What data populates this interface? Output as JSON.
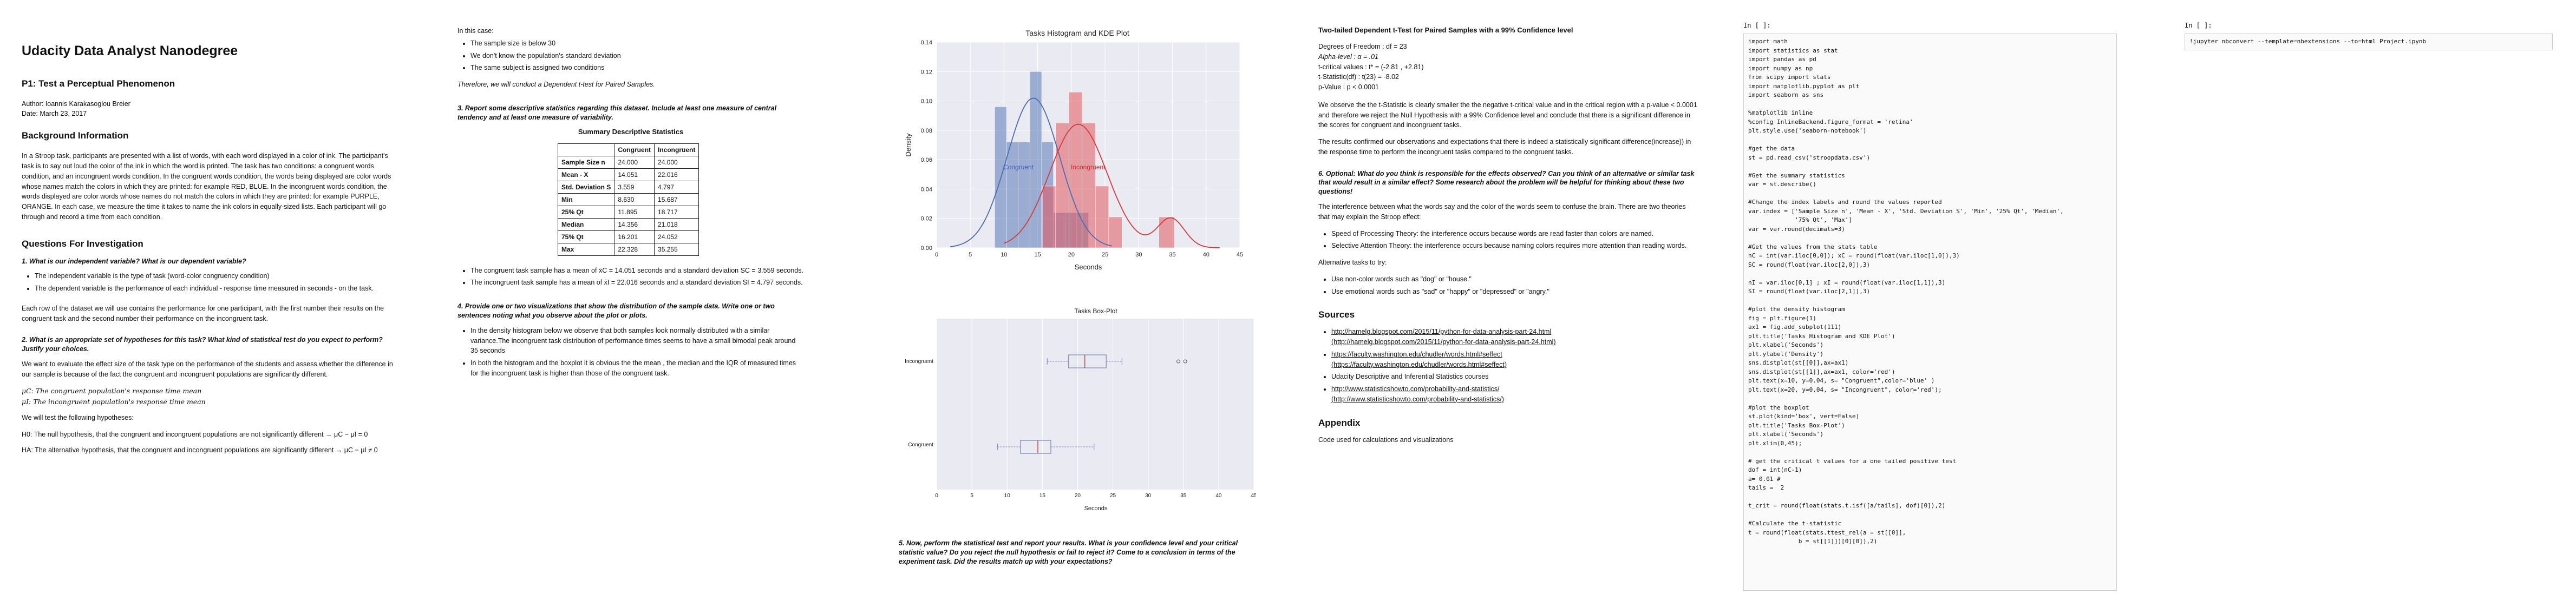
{
  "col1": {
    "title": "Udacity Data Analyst Nanodegree",
    "subtitle": "P1: Test a Perceptual Phenomenon",
    "author": "Author: Ioannis Karakasoglou Breier",
    "date": "Date: March 23, 2017",
    "background_heading": "Background Information",
    "background_text": "In a Stroop task, participants are presented with a list of words, with each word displayed in a color of ink. The participant's task is to say out loud the color of the ink in which the word is printed. The task has two conditions: a congruent words condition, and an incongruent words condition. In the congruent words condition, the words being displayed are color words whose names match the colors in which they are printed: for example RED, BLUE. In the incongruent words condition, the words displayed are color words whose names do not match the colors in which they are printed: for example PURPLE, ORANGE. In each case, we measure the time it takes to name the ink colors in equally-sized lists. Each participant will go through and record a time from each condition.",
    "questions_heading": "Questions For Investigation",
    "q1": "1. What is our independent variable? What is our dependent variable?",
    "q1_bullets": [
      "The independent variable is the type of task (word-color congruency condition)",
      "The dependent variable is the performance of each individual - response time measured in seconds - on the task."
    ],
    "q1_text": "Each row of the dataset we will use contains the performance for one participant, with the first number their results on the congruent task and the second number their performance on the incongruent task.",
    "q2": "2. What is an appropriate set of hypotheses for this task? What kind of statistical test do you expect to perform? Justify your choices.",
    "q2_text": "We want to evaluate the effect size of the task type on the performance of the students and assess whether the difference in our sample is because of the fact the congruent and incongruent populations are significantly different.",
    "mu_c": "μC: The congruent population's response time mean",
    "mu_i": "μI: The incongruent population's response time mean",
    "hyp_intro": "We will test the following hypotheses:",
    "h0": "H0: The null hypothesis, that the congruent and incongruent populations are not significantly different → μC − μI = 0",
    "ha": "HA: The alternative hypothesis, that the congruent and incongruent populations are significantly different → μC − μI ≠ 0"
  },
  "col2": {
    "in_this_case": "In this case:",
    "case_bullets": [
      "The sample size is below 30",
      "We don't know the population's standard deviation",
      "The same subject is assigned two conditions"
    ],
    "conclusion": "Therefore, we will conduct a Dependent t-test for Paired Samples.",
    "q3": "3. Report some descriptive statistics regarding this dataset. Include at least one measure of central tendency and at least one measure of variability.",
    "table_caption": "Summary Descriptive Statistics",
    "table_headers": [
      "",
      "Congruent",
      "Incongruent"
    ],
    "table_rows": [
      [
        "Sample Size n",
        "24.000",
        "24.000"
      ],
      [
        "Mean - X",
        "14.051",
        "22.016"
      ],
      [
        "Std. Deviation S",
        "3.559",
        "4.797"
      ],
      [
        "Min",
        "8.630",
        "15.687"
      ],
      [
        "25% Qt",
        "11.895",
        "18.717"
      ],
      [
        "Median",
        "14.356",
        "21.018"
      ],
      [
        "75% Qt",
        "16.201",
        "24.052"
      ],
      [
        "Max",
        "22.328",
        "35.255"
      ]
    ],
    "stat_bullets": [
      "The congruent task sample has a mean of x̄C = 14.051 seconds and a standard deviation SC = 3.559 seconds.",
      "The incongruent task sample has a mean of x̄I = 22.016 seconds and a standard deviation SI = 4.797 seconds."
    ],
    "q4": "4. Provide one or two visualizations that show the distribution of the sample data. Write one or two sentences noting what you observe about the plot or plots.",
    "viz_bullets": [
      "In the density histogram below we observe that both samples look normally distributed with a similar variance.The incongruent task distribution of performance times seems to have a small bimodal peak around 35 seconds",
      "In both the histogram and the boxplot it is obvious the the mean , the median and the IQR of measured times for the incongruent task is higher than those of the congruent task."
    ]
  },
  "col3": {
    "hist": {
      "title": "Tasks Histogram and KDE Plot",
      "xlabel": "Seconds",
      "ylabel": "Density",
      "xticks": [
        "0",
        "5",
        "10",
        "15",
        "20",
        "25",
        "30",
        "35",
        "40",
        "45"
      ],
      "yticks": [
        "0.00",
        "0.02",
        "0.04",
        "0.06",
        "0.08",
        "0.10",
        "0.12",
        "0.14"
      ],
      "label_congruent": "Congruent",
      "label_incongruent": "Incongruent"
    },
    "box": {
      "title": "Tasks Box-Plot",
      "xlabel": "Seconds",
      "cat_top": "Incongruent",
      "cat_bottom": "Congruent",
      "xticks": [
        "0",
        "5",
        "10",
        "15",
        "20",
        "25",
        "30",
        "35",
        "40",
        "45"
      ]
    },
    "q5": "5. Now, perform the statistical test and report your results. What is your confidence level and your critical statistic value? Do you reject the null hypothesis or fail to reject it? Come to a conclusion in terms of the experiment task. Did the results match up with your expectations?"
  },
  "chart_data": [
    {
      "type": "bar",
      "title": "Tasks Histogram and KDE Plot",
      "xlabel": "Seconds",
      "ylabel": "Density",
      "xlim": [
        0,
        45
      ],
      "ylim": [
        0,
        0.14
      ],
      "series": [
        {
          "name": "Congruent",
          "color": "#5a78b8",
          "bins": [
            [
              8.63,
              10.37,
              0.096
            ],
            [
              10.37,
              12.11,
              0.072
            ],
            [
              12.11,
              13.85,
              0.072
            ],
            [
              13.85,
              15.59,
              0.12
            ],
            [
              15.59,
              17.33,
              0.072
            ],
            [
              17.33,
              19.07,
              0.024
            ],
            [
              19.07,
              20.81,
              0.024
            ],
            [
              20.81,
              22.55,
              0.024
            ]
          ]
        },
        {
          "name": "Incongruent",
          "color": "#e0555c",
          "bins": [
            [
              15.69,
              17.66,
              0.042
            ],
            [
              17.66,
              19.63,
              0.085
            ],
            [
              19.63,
              21.6,
              0.106
            ],
            [
              21.6,
              23.57,
              0.085
            ],
            [
              23.57,
              25.54,
              0.042
            ],
            [
              25.54,
              27.51,
              0.021
            ],
            [
              33.0,
              35.26,
              0.021
            ]
          ]
        }
      ]
    },
    {
      "type": "box",
      "title": "Tasks Box-Plot",
      "xlabel": "Seconds",
      "xlim": [
        0,
        45
      ],
      "series": [
        {
          "name": "Incongruent",
          "min": 15.687,
          "q1": 18.717,
          "median": 21.018,
          "q3": 24.052,
          "max": 26.282,
          "outliers": [
            34.288,
            35.255
          ]
        },
        {
          "name": "Congruent",
          "min": 8.63,
          "q1": 11.895,
          "median": 14.356,
          "q3": 16.201,
          "max": 22.328,
          "outliers": []
        }
      ]
    }
  ],
  "col4": {
    "heading": "Two-tailed Dependent t-Test for Paired Samples with a 99% Confidence level",
    "stats_lines": [
      "Degrees of Freedom : df = 23",
      "Alpha-level : α = .01",
      "t-critical values : t* = (-2.81 , +2.81)",
      "t-Statistic(df) : t(23) = -8.02",
      "p-Value : p < 0.0001"
    ],
    "p1": "We observe the the t-Statistic is clearly smaller the the negative t-critical value and in the critical region with a p-value < 0.0001 and therefore we reject the Null Hypothesis with a 99% Confidence level and conclude that there is a significant difference in the scores for congruent and incongruent tasks.",
    "p2": "The results confirmed our observations and expectations that there is indeed a statistically significant difference(increase)) in the response time to perform the incongruent tasks compared to the congruent tasks.",
    "q6": "6. Optional: What do you think is responsible for the effects observed? Can you think of an alternative or similar task that would result in a similar effect? Some research about the problem will be helpful for thinking about these two questions!",
    "p3": "The interference between what the words say and the color of the words seem to confuse the brain. There are two theories that may explain the Stroop effect:",
    "theories": [
      "Speed of Processing Theory: the interference occurs because words are read faster than colors are named.",
      "Selective Attention Theory: the interference occurs because naming colors requires more attention than reading words."
    ],
    "alt_intro": "Alternative tasks to try:",
    "alt_bullets": [
      "Use non-color words such as \"dog\" or \"house.\"",
      "Use emotional words such as \"sad\" or \"happy\" or \"depressed\" or \"angry.\""
    ],
    "sources_heading": "Sources",
    "sources": [
      [
        "http://hamelg.blogspot.com/2015/11/python-for-data-analysis-part-24.html",
        "(http://hamelg.blogspot.com/2015/11/python-for-data-analysis-part-24.html)"
      ],
      [
        "https://faculty.washington.edu/chudler/words.html#seffect",
        "(https://faculty.washington.edu/chudler/words.html#seffect)"
      ],
      [
        "Udacity Descriptive and Inferential Statistics courses",
        ""
      ],
      [
        "http://www.statisticshowto.com/probability-and-statistics/",
        "(http://www.statisticshowto.com/probability-and-statistics/)"
      ]
    ],
    "appendix_heading": "Appendix",
    "appendix_text": "Code used for calculations and visualizations"
  },
  "col5": {
    "prompt": "In [ ]:",
    "code": "import math\nimport statistics as stat\nimport pandas as pd\nimport numpy as np\nfrom scipy import stats\nimport matplotlib.pyplot as plt\nimport seaborn as sns\n\n%matplotlib inline\n%config InlineBackend.figure_format = 'retina'\nplt.style.use('seaborn-notebook')\n\n#get the data\nst = pd.read_csv('stroopdata.csv')\n\n#Get the summary statistics\nvar = st.describe()\n\n#Change the index labels and round the values reported\nvar.index = ['Sample Size n', 'Mean - X', 'Std. Deviation S', 'Min', '25% Qt', 'Median',\n             '75% Qt', 'Max']\nvar = var.round(decimals=3)\n\n#Get the values from the stats table\nnC = int(var.iloc[0,0]); xC = round(float(var.iloc[1,0]),3)\nSC = round(float(var.iloc[2,0]),3)\n\nnI = var.iloc[0,1] ; xI = round(float(var.iloc[1,1]),3)\nSI = round(float(var.iloc[2,1]),3)\n\n#plot the density histogram\nfig = plt.figure(1)\nax1 = fig.add_subplot(111)\nplt.title('Tasks Histogram and KDE Plot')\nplt.xlabel('Seconds')\nplt.ylabel('Density')\nsns.distplot(st[[0]],ax=ax1)\nsns.distplot(st[[1]],ax=ax1, color='red')\nplt.text(x=10, y=0.04, s= \"Congruent\",color='blue' )\nplt.text(x=20, y=0.04, s= \"Incongruent\", color='red');\n\n#plot the boxplot\nst.plot(kind='box', vert=False)\nplt.title('Tasks Box-Plot')\nplt.xlabel('Seconds')\nplt.xlim(0,45);\n\n# get the critical t values for a one tailed positive test\ndof = int(nC-1)\na= 0.01 #\ntails =  2\n\nt_crit = round(float(stats.t.isf([a/tails], dof)[0]),2)\n\n#Calculate the t-statistic\nt = round(float(stats.ttest_rel(a = st[[0]],\n              b = st[[1]])[0][0]),2)"
  },
  "col6": {
    "prompt": "In [ ]:",
    "code": "!jupyter nbconvert --template=nbextensions --to=html Project.ipynb"
  }
}
